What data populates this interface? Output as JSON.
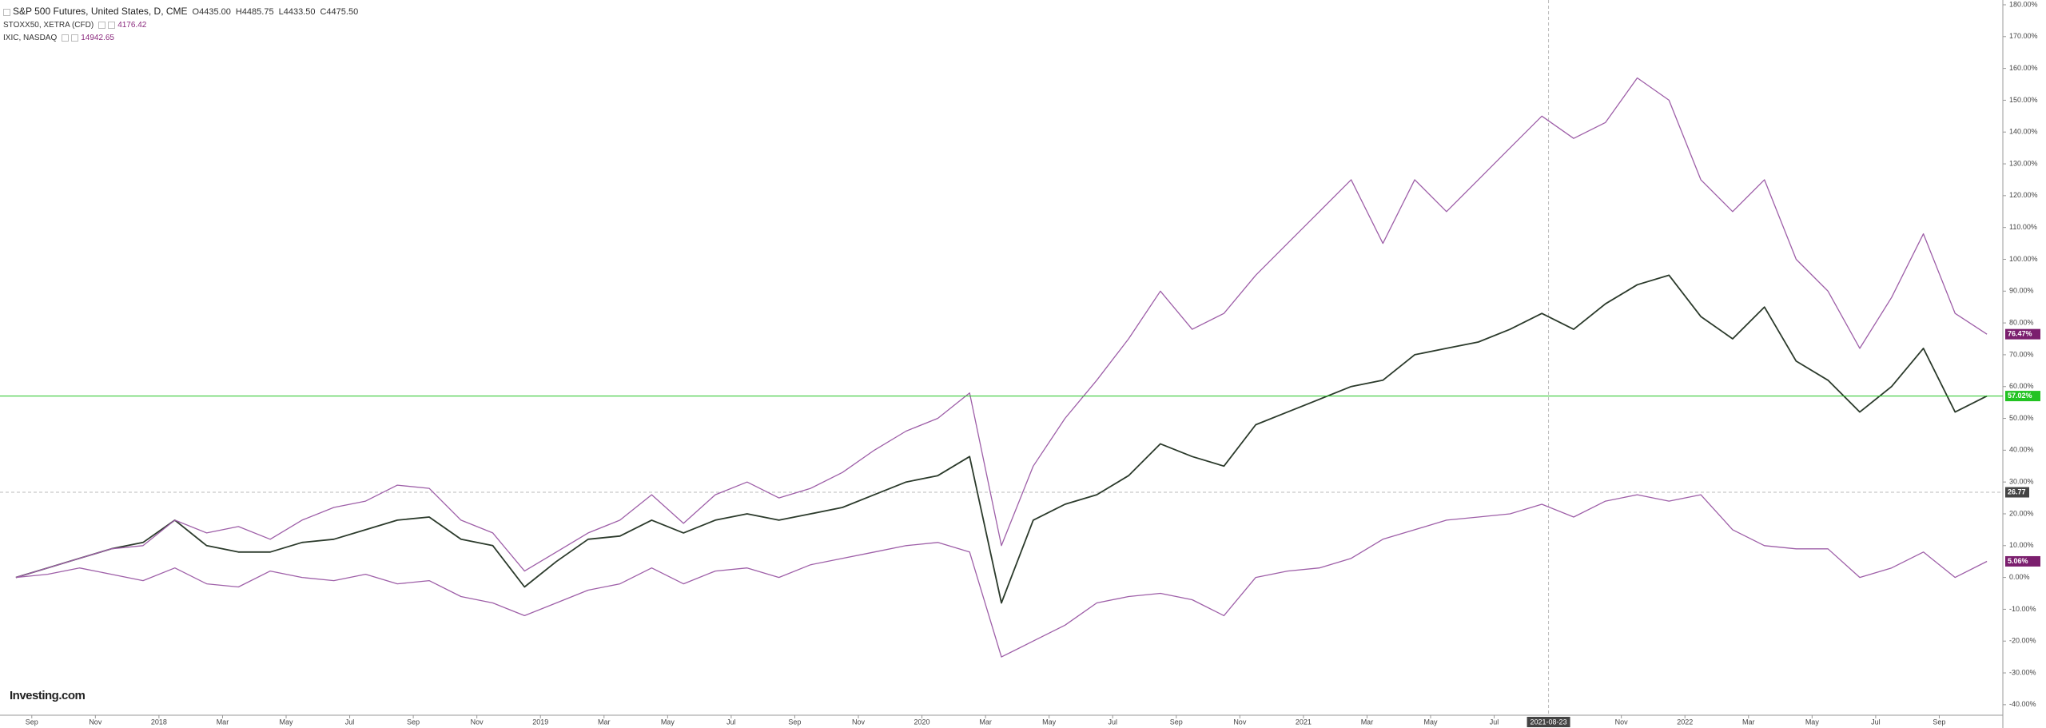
{
  "chart_data": {
    "type": "line",
    "x": [
      "2017-08",
      "2017-09",
      "2017-10",
      "2017-11",
      "2017-12",
      "2018-01",
      "2018-02",
      "2018-03",
      "2018-04",
      "2018-05",
      "2018-06",
      "2018-07",
      "2018-08",
      "2018-09",
      "2018-10",
      "2018-11",
      "2018-12",
      "2019-01",
      "2019-02",
      "2019-03",
      "2019-04",
      "2019-05",
      "2019-06",
      "2019-07",
      "2019-08",
      "2019-09",
      "2019-10",
      "2019-11",
      "2019-12",
      "2020-01",
      "2020-02",
      "2020-03",
      "2020-04",
      "2020-05",
      "2020-06",
      "2020-07",
      "2020-08",
      "2020-09",
      "2020-10",
      "2020-11",
      "2020-12",
      "2021-01",
      "2021-02",
      "2021-03",
      "2021-04",
      "2021-05",
      "2021-06",
      "2021-07",
      "2021-08",
      "2021-09",
      "2021-10",
      "2021-11",
      "2021-12",
      "2022-01",
      "2022-02",
      "2022-03",
      "2022-04",
      "2022-05",
      "2022-06",
      "2022-07",
      "2022-08",
      "2022-09",
      "2022-10"
    ],
    "xlim": [
      "2017-08",
      "2022-11"
    ],
    "xticks": [
      {
        "value": "2017-09",
        "label": "Sep"
      },
      {
        "value": "2017-11",
        "label": "Nov"
      },
      {
        "value": "2018-01",
        "label": "2018"
      },
      {
        "value": "2018-03",
        "label": "Mar"
      },
      {
        "value": "2018-05",
        "label": "May"
      },
      {
        "value": "2018-07",
        "label": "Jul"
      },
      {
        "value": "2018-09",
        "label": "Sep"
      },
      {
        "value": "2018-11",
        "label": "Nov"
      },
      {
        "value": "2019-01",
        "label": "2019"
      },
      {
        "value": "2019-03",
        "label": "Mar"
      },
      {
        "value": "2019-05",
        "label": "May"
      },
      {
        "value": "2019-07",
        "label": "Jul"
      },
      {
        "value": "2019-09",
        "label": "Sep"
      },
      {
        "value": "2019-11",
        "label": "Nov"
      },
      {
        "value": "2020-01",
        "label": "2020"
      },
      {
        "value": "2020-03",
        "label": "Mar"
      },
      {
        "value": "2020-05",
        "label": "May"
      },
      {
        "value": "2020-07",
        "label": "Jul"
      },
      {
        "value": "2020-09",
        "label": "Sep"
      },
      {
        "value": "2020-11",
        "label": "Nov"
      },
      {
        "value": "2021-01",
        "label": "2021"
      },
      {
        "value": "2021-03",
        "label": "Mar"
      },
      {
        "value": "2021-05",
        "label": "May"
      },
      {
        "value": "2021-07",
        "label": "Jul"
      },
      {
        "value": "2021-11",
        "label": "Nov"
      },
      {
        "value": "2022-01",
        "label": "2022"
      },
      {
        "value": "2022-03",
        "label": "Mar"
      },
      {
        "value": "2022-05",
        "label": "May"
      },
      {
        "value": "2022-07",
        "label": "Jul"
      },
      {
        "value": "2022-09",
        "label": "Sep"
      }
    ],
    "ylim": [
      -42.8,
      181.5
    ],
    "yticks": [
      {
        "value": 180,
        "label": "180.00%"
      },
      {
        "value": 170,
        "label": "170.00%"
      },
      {
        "value": 160,
        "label": "160.00%"
      },
      {
        "value": 150,
        "label": "150.00%"
      },
      {
        "value": 140,
        "label": "140.00%"
      },
      {
        "value": 130,
        "label": "130.00%"
      },
      {
        "value": 120,
        "label": "120.00%"
      },
      {
        "value": 110,
        "label": "110.00%"
      },
      {
        "value": 100,
        "label": "100.00%"
      },
      {
        "value": 90,
        "label": "90.00%"
      },
      {
        "value": 80,
        "label": "80.00%"
      },
      {
        "value": 70,
        "label": "70.00%"
      },
      {
        "value": 60,
        "label": "60.00%"
      },
      {
        "value": 50,
        "label": "50.00%"
      },
      {
        "value": 40,
        "label": "40.00%"
      },
      {
        "value": 30,
        "label": "30.00%"
      },
      {
        "value": 20,
        "label": "20.00%"
      },
      {
        "value": 10,
        "label": "10.00%"
      },
      {
        "value": 0,
        "label": "0.00%"
      },
      {
        "value": -10,
        "label": "-10.00%"
      },
      {
        "value": -20,
        "label": "-20.00%"
      },
      {
        "value": -30,
        "label": "-30.00%"
      },
      {
        "value": -40,
        "label": "-40.00%"
      }
    ],
    "series": [
      {
        "name": "S&P 500 Futures, United States, D, CME",
        "quote": [
          "O4435.00",
          "H4485.75",
          "L4433.50",
          "C4475.50"
        ],
        "color": "#2b3a2b",
        "label_color": "#22c322",
        "last_label": "57.02%",
        "values": [
          0,
          3,
          6,
          9,
          11,
          18,
          10,
          8,
          8,
          11,
          12,
          15,
          18,
          19,
          12,
          10,
          -3,
          5,
          12,
          13,
          18,
          14,
          18,
          20,
          18,
          20,
          22,
          26,
          30,
          32,
          38,
          -8,
          18,
          23,
          26,
          32,
          42,
          38,
          35,
          48,
          52,
          56,
          60,
          62,
          70,
          72,
          74,
          78,
          83,
          78,
          86,
          92,
          95,
          82,
          75,
          85,
          68,
          62,
          52,
          60,
          72,
          52,
          57.02
        ]
      },
      {
        "name": "STOXX50, XETRA (CFD)",
        "quote": 4176.42,
        "color": "#9e5fa8",
        "label_color": "#7b1f6e",
        "last_label": "5.06%",
        "values": [
          0,
          1,
          3,
          1,
          -1,
          3,
          -2,
          -3,
          2,
          0,
          -1,
          1,
          -2,
          -1,
          -6,
          -8,
          -12,
          -8,
          -4,
          -2,
          3,
          -2,
          2,
          3,
          0,
          4,
          6,
          8,
          10,
          11,
          8,
          -25,
          -20,
          -15,
          -8,
          -6,
          -5,
          -7,
          -12,
          0,
          2,
          3,
          6,
          12,
          15,
          18,
          19,
          20,
          23,
          19,
          24,
          26,
          24,
          26,
          15,
          10,
          9,
          9,
          0,
          3,
          8,
          0,
          5.06
        ]
      },
      {
        "name": "IXIC, NASDAQ",
        "quote": 14942.65,
        "color": "#9e5fa8",
        "label_color": "#7b1f6e",
        "last_label": "76.47%",
        "values": [
          0,
          3,
          6,
          9,
          10,
          18,
          14,
          16,
          12,
          18,
          22,
          24,
          29,
          28,
          18,
          14,
          2,
          8,
          14,
          18,
          26,
          17,
          26,
          30,
          25,
          28,
          33,
          40,
          46,
          50,
          58,
          10,
          35,
          50,
          62,
          75,
          90,
          78,
          83,
          95,
          105,
          115,
          125,
          105,
          125,
          115,
          125,
          135,
          145,
          138,
          143,
          157,
          150,
          125,
          115,
          125,
          100,
          90,
          72,
          88,
          108,
          83,
          76.47
        ]
      }
    ],
    "crosshair": {
      "x": "2021-08-23",
      "y": 26.77
    }
  },
  "brand": "Investing.com"
}
